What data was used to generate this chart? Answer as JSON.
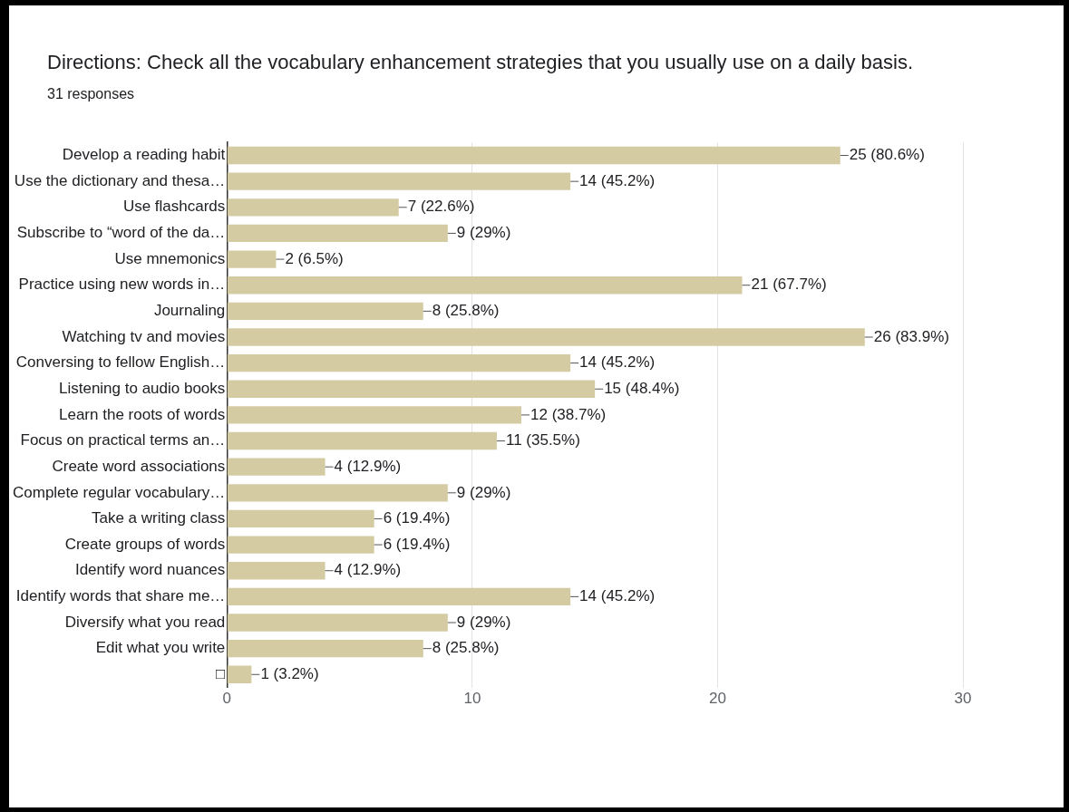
{
  "chart_data": {
    "type": "bar",
    "orientation": "horizontal",
    "title": "Directions: Check all the vocabulary enhancement strategies that you usually use on a daily basis.",
    "subtitle": "31 responses",
    "categories": [
      "Develop a reading habit",
      "Use the dictionary and thesa…",
      "Use flashcards",
      "Subscribe to “word of the da…",
      "Use mnemonics",
      "Practice using new words in…",
      "Journaling",
      "Watching tv and movies",
      "Conversing to fellow English…",
      "Listening to audio books",
      "Learn the roots of words",
      "Focus on practical terms an…",
      "Create word associations",
      "Complete regular vocabulary…",
      "Take a writing class",
      "Create groups of words",
      "Identify word nuances",
      "Identify words that share me…",
      "Diversify what you read",
      "Edit what you write",
      "□"
    ],
    "values": [
      25,
      14,
      7,
      9,
      2,
      21,
      8,
      26,
      14,
      15,
      12,
      11,
      4,
      9,
      6,
      6,
      4,
      14,
      9,
      8,
      1
    ],
    "value_labels": [
      "25 (80.6%)",
      "14 (45.2%)",
      "7 (22.6%)",
      "9 (29%)",
      "2 (6.5%)",
      "21 (67.7%)",
      "8 (25.8%)",
      "26 (83.9%)",
      "14 (45.2%)",
      "15 (48.4%)",
      "12 (38.7%)",
      "11 (35.5%)",
      "4 (12.9%)",
      "9 (29%)",
      "6 (19.4%)",
      "6 (19.4%)",
      "4 (12.9%)",
      "14 (45.2%)",
      "9 (29%)",
      "8 (25.8%)",
      "1 (3.2%)"
    ],
    "color": "#d4cba3",
    "xlim": [
      0,
      30
    ],
    "xticks": [
      0,
      10,
      20,
      30
    ],
    "grid": "x",
    "legend": false
  }
}
